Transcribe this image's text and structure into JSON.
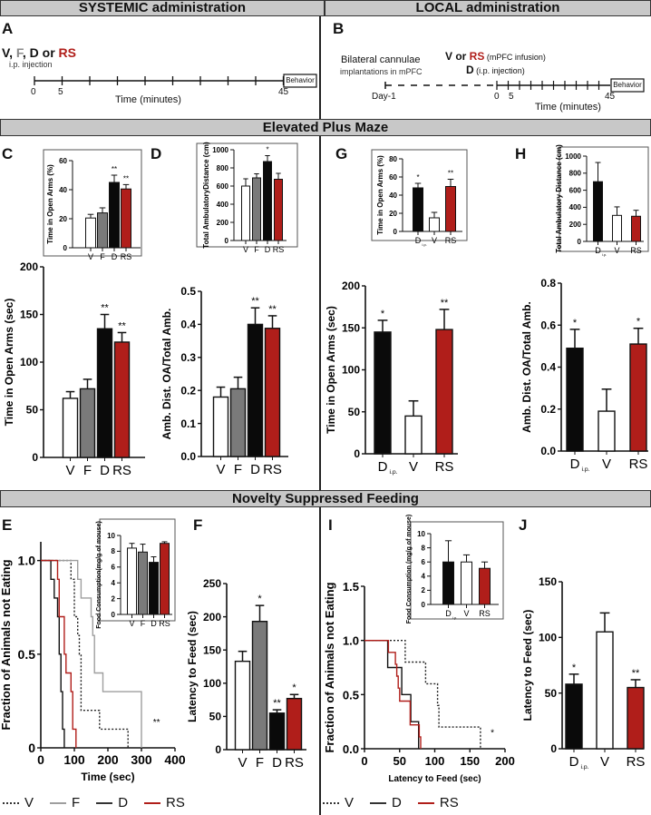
{
  "sections": {
    "systemic": "SYSTEMIC administration",
    "local": "LOCAL administration",
    "epm": "Elevated Plus Maze",
    "nsf": "Novelty Suppressed Feeding"
  },
  "panel_letters": {
    "A": "A",
    "B": "B",
    "C": "C",
    "D": "D",
    "E": "E",
    "F": "F",
    "G": "G",
    "H": "H",
    "I": "I",
    "J": "J"
  },
  "colors": {
    "V": "#ffffff",
    "F": "#7a7a7a",
    "D": "#0a0a0a",
    "RS": "#b01e1a",
    "F_line": "#9e9e9e",
    "RS_text": "#b01e1a"
  },
  "timeline_A": {
    "drugs": [
      {
        "t": "V",
        "c": "#111"
      },
      {
        "t": ", ",
        "c": "#111"
      },
      {
        "t": "F",
        "c": "#8a8a8a"
      },
      {
        "t": ", ",
        "c": "#111"
      },
      {
        "t": "D",
        "c": "#111"
      },
      {
        "t": " or ",
        "c": "#111"
      },
      {
        "t": "RS",
        "c": "#b01e1a"
      }
    ],
    "route": "i.p. injection",
    "tick_labels": [
      "0",
      "5",
      "45"
    ],
    "xlabel": "Time (minutes)",
    "end_box": "Behavior"
  },
  "timeline_B": {
    "surgery_line1": "Bilateral cannulae",
    "surgery_line2": "implantations in mPFC",
    "drug1_bold": "V or ",
    "drug1_red": "RS",
    "drug1_route": " (mPFC infusion)",
    "drug2_bold": "D",
    "drug2_route": " (i.p. injection)",
    "day_label": "Day-1",
    "tick_labels": [
      "0",
      "5",
      "45"
    ],
    "xlabel": "Time (minutes)",
    "end_box": "Behavior"
  },
  "legend_E": [
    {
      "label": "V",
      "style": "dotted",
      "color": "#333"
    },
    {
      "label": "F",
      "style": "solid",
      "color": "#9e9e9e"
    },
    {
      "label": "D",
      "style": "solid",
      "color": "#333"
    },
    {
      "label": "RS",
      "style": "solid",
      "color": "#b01e1a"
    }
  ],
  "legend_I": [
    {
      "label": "V",
      "style": "dotted",
      "color": "#333"
    },
    {
      "label": "D",
      "style": "solid",
      "color": "#333"
    },
    {
      "label": "RS",
      "style": "solid",
      "color": "#b01e1a"
    }
  ],
  "chart_data": [
    {
      "id": "C_inset",
      "type": "bar",
      "ylabel": "Time in Open Arms (%)",
      "categories": [
        "V",
        "F",
        "D",
        "RS"
      ],
      "values": [
        20.5,
        24,
        45,
        40.5
      ],
      "errors": [
        2.5,
        3.5,
        5,
        3
      ],
      "sig": [
        "",
        "",
        "**",
        "**"
      ],
      "ylim": [
        0,
        60
      ],
      "yticks": [
        0,
        20,
        40,
        60
      ]
    },
    {
      "id": "C_main",
      "type": "bar",
      "ylabel": "Time in Open Arms (sec)",
      "categories": [
        "V",
        "F",
        "D",
        "RS"
      ],
      "values": [
        62,
        72,
        135,
        121
      ],
      "errors": [
        7,
        10,
        15,
        10
      ],
      "sig": [
        "",
        "",
        "**",
        "**"
      ],
      "ylim": [
        0,
        200
      ],
      "yticks": [
        0,
        50,
        100,
        150,
        200
      ]
    },
    {
      "id": "D_inset",
      "type": "bar",
      "ylabel": "Total AmbulatoryDistance (cm)",
      "categories": [
        "V",
        "F",
        "D",
        "RS"
      ],
      "values": [
        600,
        690,
        870,
        675
      ],
      "errors": [
        80,
        45,
        65,
        65
      ],
      "sig": [
        "",
        "",
        "*",
        ""
      ],
      "ylim": [
        0,
        1000
      ],
      "yticks": [
        0,
        200,
        400,
        600,
        800,
        1000
      ]
    },
    {
      "id": "D_main",
      "type": "bar",
      "ylabel": "Amb. Dist. OA/Total Amb.",
      "categories": [
        "V",
        "F",
        "D",
        "RS"
      ],
      "values": [
        0.18,
        0.205,
        0.4,
        0.388
      ],
      "errors": [
        0.03,
        0.035,
        0.05,
        0.038
      ],
      "sig": [
        "",
        "",
        "**",
        "**"
      ],
      "ylim": [
        0,
        0.5
      ],
      "yticks": [
        "0.0",
        "0.1",
        "0.2",
        "0.3",
        "0.4",
        "0.5"
      ]
    },
    {
      "id": "G_inset",
      "type": "bar",
      "ylabel": "Time in Open Arms (%)",
      "categories": [
        "D_i.p.",
        "V",
        "RS"
      ],
      "values": [
        48,
        15,
        49.5
      ],
      "errors": [
        5,
        6,
        8
      ],
      "sig": [
        "*",
        "",
        "**"
      ],
      "ylim": [
        0,
        80
      ],
      "yticks": [
        0,
        20,
        40,
        60,
        80
      ]
    },
    {
      "id": "G_main",
      "type": "bar",
      "ylabel": "Time in Open Arms (sec)",
      "categories": [
        "D_i.p.",
        "V",
        "RS"
      ],
      "values": [
        145,
        45,
        148
      ],
      "errors": [
        14,
        18,
        24
      ],
      "sig": [
        "*",
        "",
        "**"
      ],
      "ylim": [
        0,
        200
      ],
      "yticks": [
        0,
        50,
        100,
        150,
        200
      ]
    },
    {
      "id": "H_inset",
      "type": "bar",
      "ylabel": "Total Ambulatory Distance (cm)",
      "categories": [
        "D_i.p.",
        "V",
        "RS"
      ],
      "values": [
        700,
        305,
        295
      ],
      "errors": [
        225,
        100,
        70
      ],
      "sig": [
        "",
        "",
        ""
      ],
      "ylim": [
        0,
        1000
      ],
      "yticks": [
        0,
        200,
        400,
        600,
        800,
        1000
      ]
    },
    {
      "id": "H_main",
      "type": "bar",
      "ylabel": "Amb. Dist. OA/Total Amb.",
      "categories": [
        "D_i.p.",
        "V",
        "RS"
      ],
      "values": [
        0.49,
        0.19,
        0.51
      ],
      "errors": [
        0.09,
        0.105,
        0.075
      ],
      "sig": [
        "*",
        "",
        "*"
      ],
      "ylim": [
        0,
        0.8
      ],
      "yticks": [
        "0.0",
        "0.2",
        "0.4",
        "0.6",
        "0.8"
      ]
    },
    {
      "id": "E_inset",
      "type": "bar",
      "ylabel": "Food Consumption(mg/g of mouse)",
      "categories": [
        "V",
        "F",
        "D",
        "RS"
      ],
      "values": [
        8.4,
        7.9,
        6.6,
        9.0
      ],
      "errors": [
        0.6,
        1.0,
        0.7,
        0.2
      ],
      "sig": [
        "",
        "",
        "",
        ""
      ],
      "ylim": [
        0,
        10
      ],
      "yticks": [
        0,
        2,
        4,
        6,
        8,
        10
      ]
    },
    {
      "id": "E_main",
      "type": "line",
      "subtype": "kaplan-meier",
      "ylabel": "Fraction of Animals not Eating",
      "xlabel": "Time (sec)",
      "xlim": [
        0,
        400
      ],
      "ylim": [
        0,
        1.1
      ],
      "xticks": [
        0,
        100,
        200,
        300,
        400
      ],
      "yticks": [
        "0",
        "0.5",
        "1.0"
      ],
      "annotation": "**",
      "series": [
        {
          "name": "V",
          "style": "dotted",
          "points": [
            [
              0,
              1
            ],
            [
              90,
              1
            ],
            [
              90,
              0.9
            ],
            [
              100,
              0.9
            ],
            [
              100,
              0.7
            ],
            [
              110,
              0.7
            ],
            [
              110,
              0.6
            ],
            [
              115,
              0.6
            ],
            [
              115,
              0.5
            ],
            [
              120,
              0.5
            ],
            [
              120,
              0.2
            ],
            [
              175,
              0.2
            ],
            [
              175,
              0.1
            ],
            [
              260,
              0.1
            ],
            [
              260,
              0
            ]
          ]
        },
        {
          "name": "F",
          "style": "solid",
          "points": [
            [
              0,
              1
            ],
            [
              110,
              1
            ],
            [
              110,
              0.9
            ],
            [
              120,
              0.9
            ],
            [
              120,
              0.8
            ],
            [
              150,
              0.8
            ],
            [
              150,
              0.7
            ],
            [
              155,
              0.7
            ],
            [
              155,
              0.6
            ],
            [
              160,
              0.6
            ],
            [
              160,
              0.4
            ],
            [
              185,
              0.4
            ],
            [
              185,
              0.3
            ],
            [
              300,
              0.3
            ],
            [
              300,
              0
            ]
          ]
        },
        {
          "name": "D",
          "style": "solid",
          "points": [
            [
              0,
              1
            ],
            [
              30,
              1
            ],
            [
              30,
              0.9
            ],
            [
              40,
              0.9
            ],
            [
              40,
              0.8
            ],
            [
              50,
              0.8
            ],
            [
              50,
              0.7
            ],
            [
              55,
              0.7
            ],
            [
              55,
              0.5
            ],
            [
              60,
              0.5
            ],
            [
              60,
              0.3
            ],
            [
              65,
              0.3
            ],
            [
              65,
              0.1
            ],
            [
              70,
              0.1
            ],
            [
              70,
              0
            ]
          ]
        },
        {
          "name": "RS",
          "style": "solid",
          "points": [
            [
              0,
              1
            ],
            [
              50,
              1
            ],
            [
              50,
              0.9
            ],
            [
              55,
              0.9
            ],
            [
              55,
              0.7
            ],
            [
              70,
              0.7
            ],
            [
              70,
              0.5
            ],
            [
              75,
              0.5
            ],
            [
              75,
              0.4
            ],
            [
              90,
              0.4
            ],
            [
              90,
              0.3
            ],
            [
              95,
              0.3
            ],
            [
              95,
              0.1
            ],
            [
              105,
              0.1
            ],
            [
              105,
              0
            ]
          ]
        }
      ]
    },
    {
      "id": "F_main",
      "type": "bar",
      "ylabel": "Latency to Feed  (sec)",
      "categories": [
        "V",
        "F",
        "D",
        "RS"
      ],
      "values": [
        133,
        193,
        55,
        77
      ],
      "errors": [
        15,
        24,
        5,
        6
      ],
      "sig": [
        "",
        "*",
        "**",
        "*"
      ],
      "ylim": [
        0,
        250
      ],
      "yticks": [
        0,
        50,
        100,
        150,
        200,
        250
      ]
    },
    {
      "id": "I_inset",
      "type": "bar",
      "ylabel": "Food Consumption (mg/g of mouse)",
      "categories": [
        "D_i.p.",
        "V",
        "RS"
      ],
      "values": [
        6,
        6,
        5.1
      ],
      "errors": [
        3,
        1,
        0.9
      ],
      "sig": [
        "",
        "",
        ""
      ],
      "ylim": [
        0,
        10
      ],
      "yticks": [
        0,
        2,
        4,
        6,
        8,
        10
      ]
    },
    {
      "id": "I_main",
      "type": "line",
      "subtype": "kaplan-meier",
      "ylabel": "Fraction of Animals not Eating",
      "xlabel": "Latency to Feed (sec)",
      "xlim": [
        0,
        200
      ],
      "ylim": [
        0,
        1.5
      ],
      "xticks": [
        0,
        50,
        100,
        150,
        200
      ],
      "yticks": [
        "0.0",
        "0.5",
        "1.0",
        "1.5"
      ],
      "annotation": "*",
      "series": [
        {
          "name": "V",
          "style": "dotted",
          "points": [
            [
              0,
              1
            ],
            [
              58,
              1
            ],
            [
              58,
              0.8
            ],
            [
              87,
              0.8
            ],
            [
              87,
              0.6
            ],
            [
              104,
              0.6
            ],
            [
              104,
              0.4
            ],
            [
              106,
              0.4
            ],
            [
              106,
              0.2
            ],
            [
              165,
              0.2
            ],
            [
              165,
              0
            ]
          ]
        },
        {
          "name": "D",
          "style": "solid",
          "points": [
            [
              0,
              1
            ],
            [
              33,
              1
            ],
            [
              33,
              0.75
            ],
            [
              53,
              0.75
            ],
            [
              53,
              0.5
            ],
            [
              66,
              0.5
            ],
            [
              66,
              0.25
            ],
            [
              77,
              0.25
            ],
            [
              77,
              0
            ]
          ]
        },
        {
          "name": "RS",
          "style": "solid",
          "points": [
            [
              0,
              1
            ],
            [
              34,
              1
            ],
            [
              34,
              0.89
            ],
            [
              44,
              0.89
            ],
            [
              44,
              0.78
            ],
            [
              46,
              0.78
            ],
            [
              46,
              0.67
            ],
            [
              48,
              0.67
            ],
            [
              48,
              0.56
            ],
            [
              50,
              0.56
            ],
            [
              50,
              0.44
            ],
            [
              65,
              0.44
            ],
            [
              65,
              0.22
            ],
            [
              78,
              0.22
            ],
            [
              78,
              0.11
            ],
            [
              80,
              0.11
            ],
            [
              80,
              0
            ]
          ]
        }
      ]
    },
    {
      "id": "J_main",
      "type": "bar",
      "ylabel": "Latency to Feed  (sec)",
      "categories": [
        "D_i.p.",
        "V",
        "RS"
      ],
      "values": [
        58,
        105,
        55
      ],
      "errors": [
        9,
        17,
        7
      ],
      "sig": [
        "*",
        "",
        "**"
      ],
      "ylim": [
        0,
        150
      ],
      "yticks": [
        0,
        50,
        100,
        150
      ]
    }
  ]
}
